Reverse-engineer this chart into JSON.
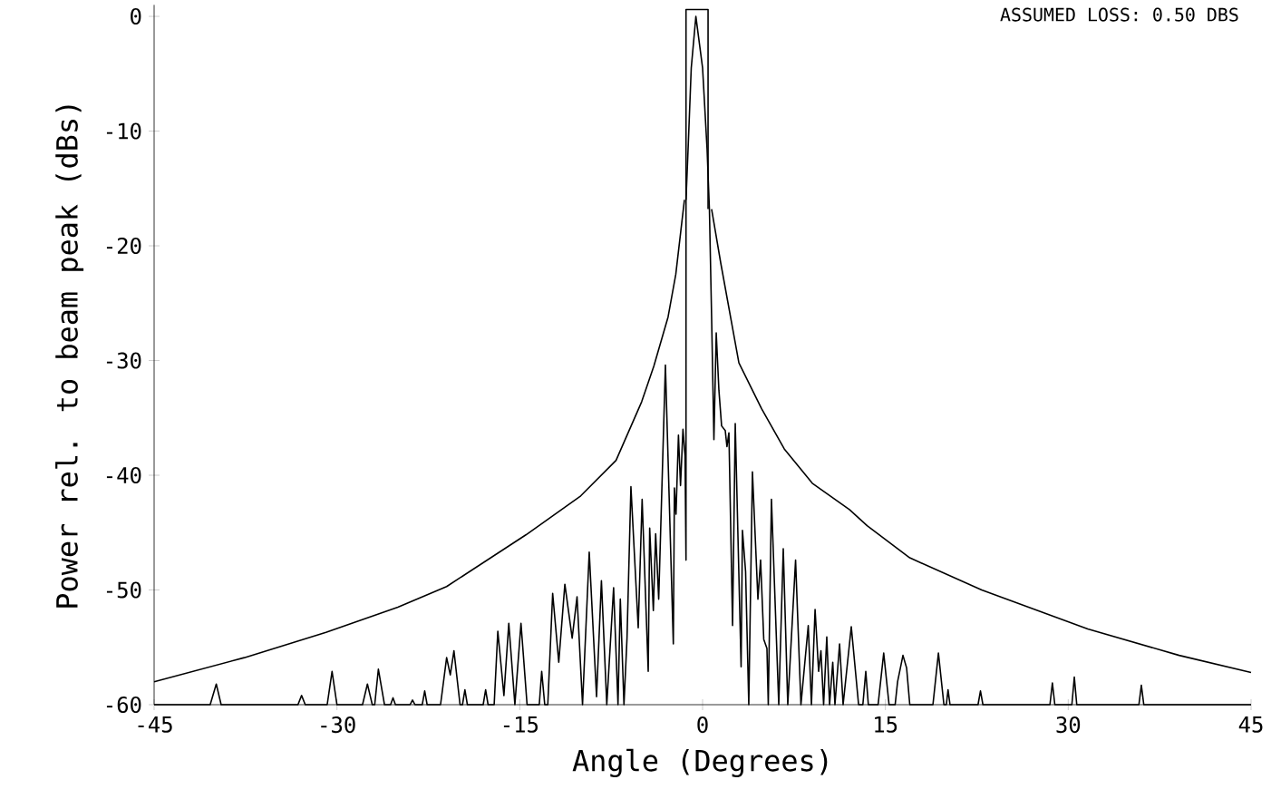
{
  "chart_data": {
    "type": "line",
    "xlabel": "Angle (Degrees)",
    "ylabel": "Power rel. to beam peak (dBs)",
    "annotations": [
      "ASSUMED LOSS:   0.50   DBS"
    ],
    "xlim": [
      -45,
      45
    ],
    "ylim": [
      -60,
      1
    ],
    "xticks": [
      -45,
      -30,
      -15,
      0,
      15,
      30,
      45
    ],
    "yticks": [
      -60,
      -50,
      -40,
      -30,
      -20,
      -10,
      0
    ],
    "grid": false,
    "series": [
      {
        "color": "#000000",
        "x": [
          -45,
          -40.4,
          -39.9,
          -39.5,
          -33.2,
          -32.9,
          -32.6,
          -30.8,
          -30.4,
          -30.0,
          -27.9,
          -27.5,
          -27.1,
          -26.9,
          -26.6,
          -26.1,
          -25.6,
          -25.4,
          -25.2,
          -24.0,
          -23.8,
          -23.6,
          -23.0,
          -22.8,
          -22.6,
          -21.5,
          -21.0,
          -20.7,
          -20.4,
          -19.9,
          -19.7,
          -19.5,
          -19.3,
          -18.0,
          -17.8,
          -17.6,
          -17.1,
          -16.8,
          -16.3,
          -15.9,
          -15.4,
          -14.9,
          -14.4,
          -13.4,
          -13.2,
          -12.95,
          -12.7,
          -12.3,
          -11.8,
          -11.3,
          -10.7,
          -10.3,
          -9.85,
          -9.3,
          -8.7,
          -8.3,
          -7.86,
          -7.3,
          -6.94,
          -6.75,
          -6.45,
          -6.2,
          -5.88,
          -5.28,
          -4.96,
          -4.46,
          -4.34,
          -4.04,
          -3.85,
          -3.6,
          -3.05,
          -2.4,
          -2.31,
          -2.18,
          -1.98,
          -1.81,
          -1.61,
          -1.44,
          -1.36,
          -1.36,
          -1.19,
          -0.93,
          -0.55,
          0,
          0.37,
          0.56,
          0.74,
          0.93,
          1.12,
          1.34,
          1.56,
          1.86,
          2.0,
          2.16,
          2.46,
          2.68,
          3.16,
          3.27,
          3.53,
          3.79,
          4.09,
          4.54,
          4.76,
          5.02,
          5.28,
          5.39,
          5.65,
          6.25,
          6.62,
          6.99,
          7.63,
          8.07,
          8.67,
          8.93,
          9.23,
          9.52,
          9.71,
          9.93,
          10.19,
          10.42,
          10.68,
          10.86,
          11.24,
          11.53,
          12.2,
          12.8,
          13.15,
          13.39,
          13.6,
          14.4,
          14.86,
          15.3,
          15.8,
          16.0,
          16.44,
          16.74,
          17.0,
          18.9,
          19.35,
          19.8,
          20.0,
          20.14,
          20.3,
          22.6,
          22.8,
          23.0,
          28.5,
          28.7,
          28.9,
          30.3,
          30.5,
          30.7,
          35.8,
          36.0,
          36.2,
          45
        ],
        "values": [
          -60,
          -60,
          -58.2,
          -60,
          -60,
          -59.2,
          -60,
          -60,
          -57.1,
          -60,
          -60,
          -58.2,
          -60,
          -60,
          -56.9,
          -60,
          -60,
          -59.4,
          -60,
          -60,
          -59.6,
          -60,
          -60,
          -58.8,
          -60,
          -60,
          -55.9,
          -57.4,
          -55.3,
          -60,
          -60,
          -58.7,
          -60,
          -60,
          -58.7,
          -60,
          -60,
          -53.6,
          -59.2,
          -52.9,
          -60,
          -52.9,
          -60,
          -60,
          -57.1,
          -60,
          -60,
          -50.3,
          -56.3,
          -49.5,
          -54.2,
          -50.6,
          -60,
          -46.7,
          -59.3,
          -49.2,
          -60,
          -49.8,
          -60,
          -50.8,
          -60,
          -54.2,
          -41.0,
          -53.3,
          -42.1,
          -57.1,
          -44.6,
          -51.8,
          -45.1,
          -50.8,
          -30.4,
          -54.7,
          -41.1,
          -43.4,
          -36.5,
          -40.9,
          -36.0,
          -38.3,
          -47.4,
          -16.0,
          -11.6,
          -4.5,
          0,
          -4.5,
          -11.6,
          -16.8,
          -26.2,
          -36.9,
          -27.6,
          -32.6,
          -35.7,
          -36.1,
          -37.5,
          -36.3,
          -53.1,
          -35.5,
          -56.7,
          -44.8,
          -48.4,
          -60,
          -39.7,
          -50.8,
          -47.4,
          -54.3,
          -55.1,
          -60,
          -42.1,
          -60,
          -46.4,
          -60,
          -47.4,
          -60,
          -53.1,
          -60,
          -51.7,
          -57.1,
          -55.3,
          -60,
          -54.1,
          -60,
          -56.3,
          -60,
          -54.7,
          -60,
          -53.2,
          -60,
          -60,
          -57.1,
          -60,
          -60,
          -55.5,
          -60,
          -60,
          -58.0,
          -55.7,
          -56.8,
          -60,
          -60,
          -55.5,
          -60,
          -60,
          -58.7,
          -60,
          -60,
          -58.8,
          -60,
          -60,
          -58.1,
          -60,
          -60,
          -57.6,
          -60,
          -60,
          -58.3,
          -60,
          -60
        ]
      },
      {
        "color": "#000000",
        "x": [
          -45,
          -37.6,
          -30.9,
          -25,
          -21.0,
          -14.5,
          -10,
          -7.1,
          -5,
          -4,
          -2.83,
          -2.2,
          -1.49,
          null,
          0.74,
          1.49,
          2.98,
          4.84,
          6.7,
          9,
          12.05,
          13.5,
          17,
          22.9,
          31.6,
          39.1,
          45
        ],
        "values": [
          -58.0,
          -55.9,
          -53.7,
          -51.5,
          -49.7,
          -45.2,
          -41.8,
          -38.7,
          -33.6,
          -30.5,
          -26.2,
          -22.5,
          -16.0,
          null,
          -16.8,
          -21.5,
          -30.2,
          -34.2,
          -37.7,
          -40.7,
          -43.0,
          -44.4,
          -47.2,
          -50.0,
          -53.4,
          -55.7,
          -57.2
        ]
      },
      {
        "color": "#000000",
        "x": [
          -1.36,
          -1.36,
          0.45,
          0.45
        ],
        "values": [
          -16.0,
          0.6,
          0.6,
          -16.8
        ]
      }
    ]
  }
}
